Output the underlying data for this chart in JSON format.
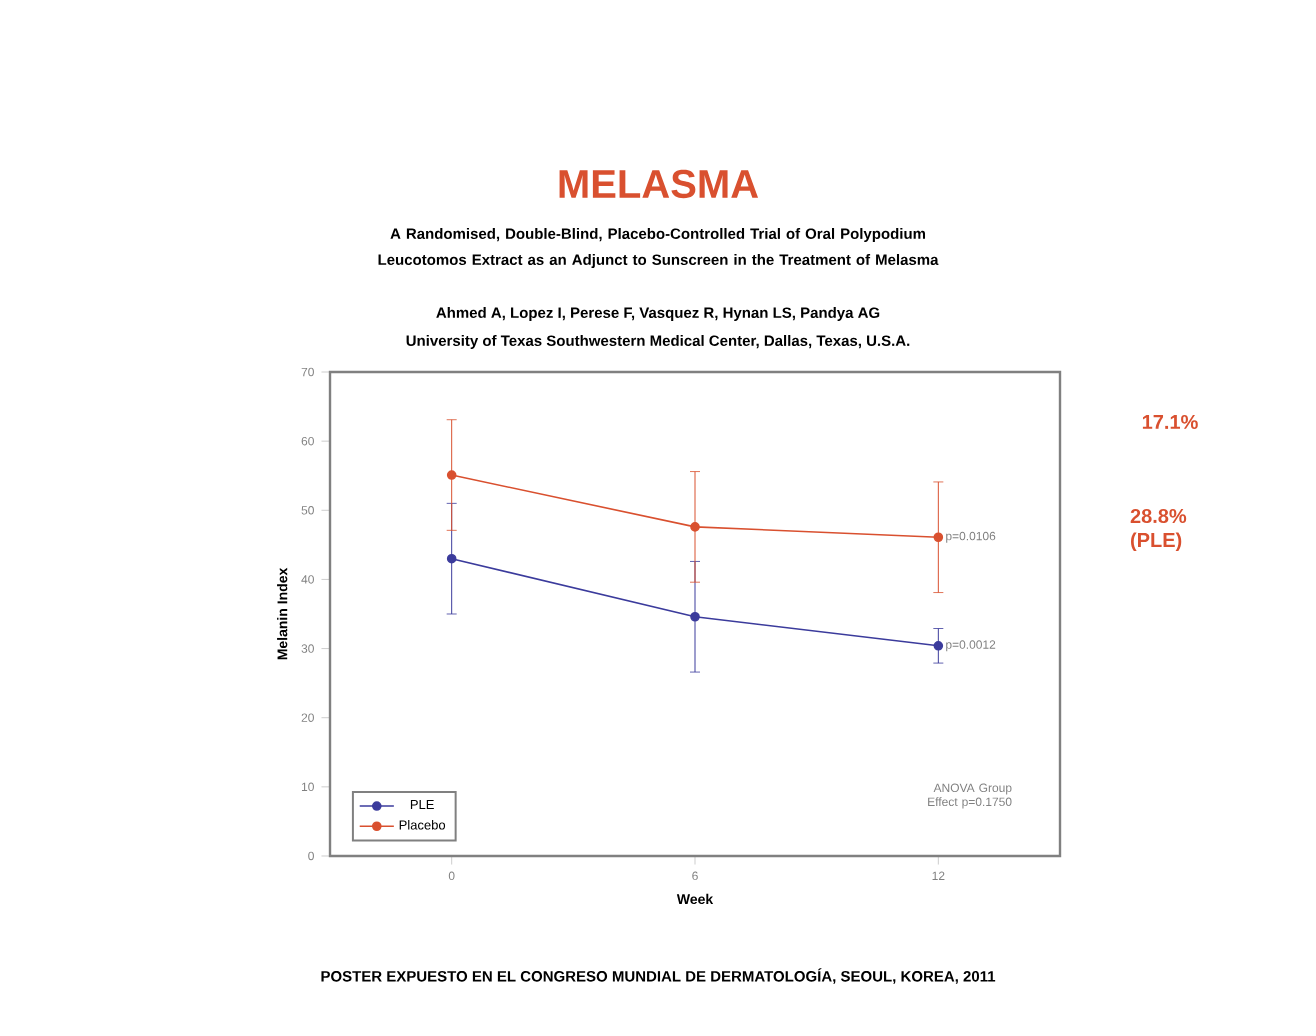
{
  "chart_data": {
    "type": "line",
    "title": "MELASMA",
    "subtitle": "A Randomised, Double-Blind, Placebo-Controlled Trial of Oral Polypodium Leucotomos Extract as an Adjunct to Sunscreen in the Treatment of Melasma",
    "xlabel": "Week",
    "ylabel": "Melanin Index",
    "x": [
      0,
      6,
      12
    ],
    "xlim": [
      -3,
      15
    ],
    "xticks": [
      0,
      6,
      12
    ],
    "ylim": [
      0,
      70
    ],
    "yticks": [
      0,
      10,
      20,
      30,
      40,
      50,
      60,
      70
    ],
    "series": [
      {
        "name": "PLE",
        "color": "#3b3b9c",
        "values": [
          43,
          34.6,
          30.4
        ],
        "errors": [
          8,
          8,
          2.5
        ]
      },
      {
        "name": "Placebo",
        "color": "#d9502f",
        "values": [
          55.1,
          47.6,
          46.1
        ],
        "errors": [
          8,
          8,
          8
        ]
      }
    ],
    "marker": "circle",
    "legend": "bottom left",
    "grid": false,
    "annotations": [
      {
        "text": "p=0.0106",
        "x": 12,
        "y": 46.1
      },
      {
        "text": "p=0.0012",
        "x": 12,
        "y": 30.4
      },
      "17.1%",
      "28.8% (PLE)",
      "ANOVA Group Effect p=0.1750",
      "Ahmed A, Lopez I, Perese F, Vasquez R, Hynan LS, Pandya AG",
      "University of Texas Southwestern Medical Center, Dallas, Texas, U.S.A.",
      "POSTER EXPUESTO EN EL CONGRESO MUNDIAL DE DERMATOLOGÍA, SEOUL, KOREA, 2011"
    ]
  }
}
